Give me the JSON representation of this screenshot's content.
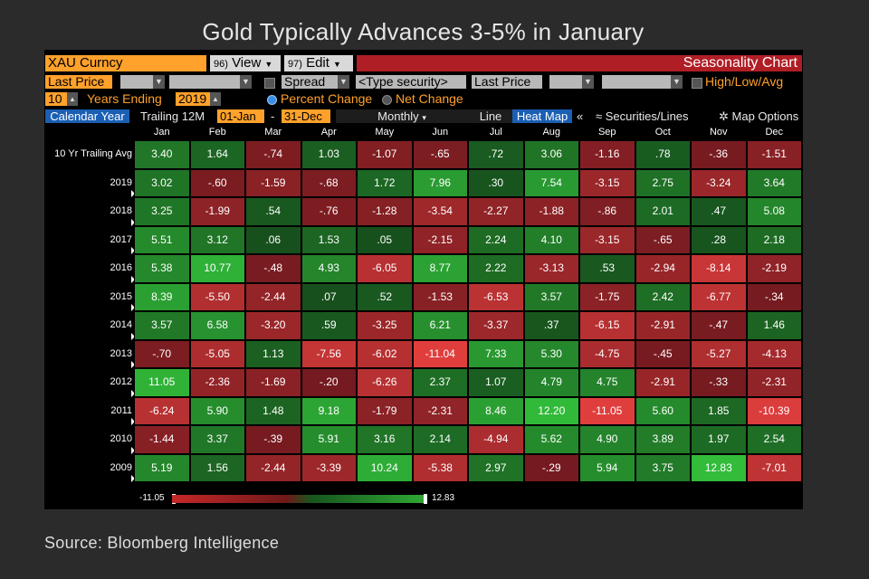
{
  "page": {
    "title": "Gold Typically Advances 3-5% in January",
    "source": "Source: Bloomberg Intelligence"
  },
  "toolbar": {
    "security": "XAU Curncy",
    "view_num": "96)",
    "view_label": "View",
    "edit_num": "97)",
    "edit_label": "Edit",
    "chart_name": "Seasonality Chart"
  },
  "params": {
    "field1": "Last Price",
    "spread_label": "Spread",
    "type_security": "<Type security>",
    "field2": "Last Price",
    "high_low_avg": "High/Low/Avg",
    "years": "10",
    "years_ending_label": "Years Ending",
    "end_year": "2019",
    "percent_change": "Percent Change",
    "net_change": "Net Change"
  },
  "options": {
    "calendar_year": "Calendar Year",
    "trailing": "Trailing 12M",
    "start": "01-Jan",
    "dash": "-",
    "end": "31-Dec",
    "period": "Monthly",
    "line": "Line",
    "heat_map": "Heat Map",
    "collapse": "«",
    "securities_lines": "Securities/Lines",
    "map_options": "Map Options"
  },
  "legend": {
    "min": "-11.05",
    "max": "12.83"
  },
  "colors": {
    "amber": "#ffa12b",
    "bloomberg_red": "#b01e25",
    "bloomberg_blue": "#1a5fb4",
    "strong_green": "#2fa834",
    "strong_red": "#e0403c"
  },
  "chart_data": {
    "type": "heatmap",
    "columns": [
      "Jan",
      "Feb",
      "Mar",
      "Apr",
      "May",
      "Jun",
      "Jul",
      "Aug",
      "Sep",
      "Oct",
      "Nov",
      "Dec"
    ],
    "rows": [
      {
        "label": "10 Yr Trailing Avg",
        "values": [
          "3.40",
          "1.64",
          "-.74",
          "1.03",
          "-1.07",
          "-.65",
          ".72",
          "3.06",
          "-1.16",
          ".78",
          "-.36",
          "-1.51"
        ]
      },
      {
        "label": "2019",
        "values": [
          "3.02",
          "-.60",
          "-1.59",
          "-.68",
          "1.72",
          "7.96",
          ".30",
          "7.54",
          "-3.15",
          "2.75",
          "-3.24",
          "3.64"
        ]
      },
      {
        "label": "2018",
        "values": [
          "3.25",
          "-1.99",
          ".54",
          "-.76",
          "-1.28",
          "-3.54",
          "-2.27",
          "-1.88",
          "-.86",
          "2.01",
          ".47",
          "5.08"
        ]
      },
      {
        "label": "2017",
        "values": [
          "5.51",
          "3.12",
          ".06",
          "1.53",
          ".05",
          "-2.15",
          "2.24",
          "4.10",
          "-3.15",
          "-.65",
          ".28",
          "2.18"
        ]
      },
      {
        "label": "2016",
        "values": [
          "5.38",
          "10.77",
          "-.48",
          "4.93",
          "-6.05",
          "8.77",
          "2.22",
          "-3.13",
          ".53",
          "-2.94",
          "-8.14",
          "-2.19"
        ]
      },
      {
        "label": "2015",
        "values": [
          "8.39",
          "-5.50",
          "-2.44",
          ".07",
          ".52",
          "-1.53",
          "-6.53",
          "3.57",
          "-1.75",
          "2.42",
          "-6.77",
          "-.34"
        ]
      },
      {
        "label": "2014",
        "values": [
          "3.57",
          "6.58",
          "-3.20",
          ".59",
          "-3.25",
          "6.21",
          "-3.37",
          ".37",
          "-6.15",
          "-2.91",
          "-.47",
          "1.46"
        ]
      },
      {
        "label": "2013",
        "values": [
          "-.70",
          "-5.05",
          "1.13",
          "-7.56",
          "-6.02",
          "-11.04",
          "7.33",
          "5.30",
          "-4.75",
          "-.45",
          "-5.27",
          "-4.13"
        ]
      },
      {
        "label": "2012",
        "values": [
          "11.05",
          "-2.36",
          "-1.69",
          "-.20",
          "-6.26",
          "2.37",
          "1.07",
          "4.79",
          "4.75",
          "-2.91",
          "-.33",
          "-2.31"
        ]
      },
      {
        "label": "2011",
        "values": [
          "-6.24",
          "5.90",
          "1.48",
          "9.18",
          "-1.79",
          "-2.31",
          "8.46",
          "12.20",
          "-11.05",
          "5.60",
          "1.85",
          "-10.39"
        ]
      },
      {
        "label": "2010",
        "values": [
          "-1.44",
          "3.37",
          "-.39",
          "5.91",
          "3.16",
          "2.14",
          "-4.94",
          "5.62",
          "4.90",
          "3.89",
          "1.97",
          "2.54"
        ]
      },
      {
        "label": "2009",
        "values": [
          "5.19",
          "1.56",
          "-2.44",
          "-3.39",
          "10.24",
          "-5.38",
          "2.97",
          "-.29",
          "5.94",
          "3.75",
          "12.83",
          "-7.01"
        ]
      }
    ],
    "scale_min": -11.05,
    "scale_max": 12.83
  }
}
